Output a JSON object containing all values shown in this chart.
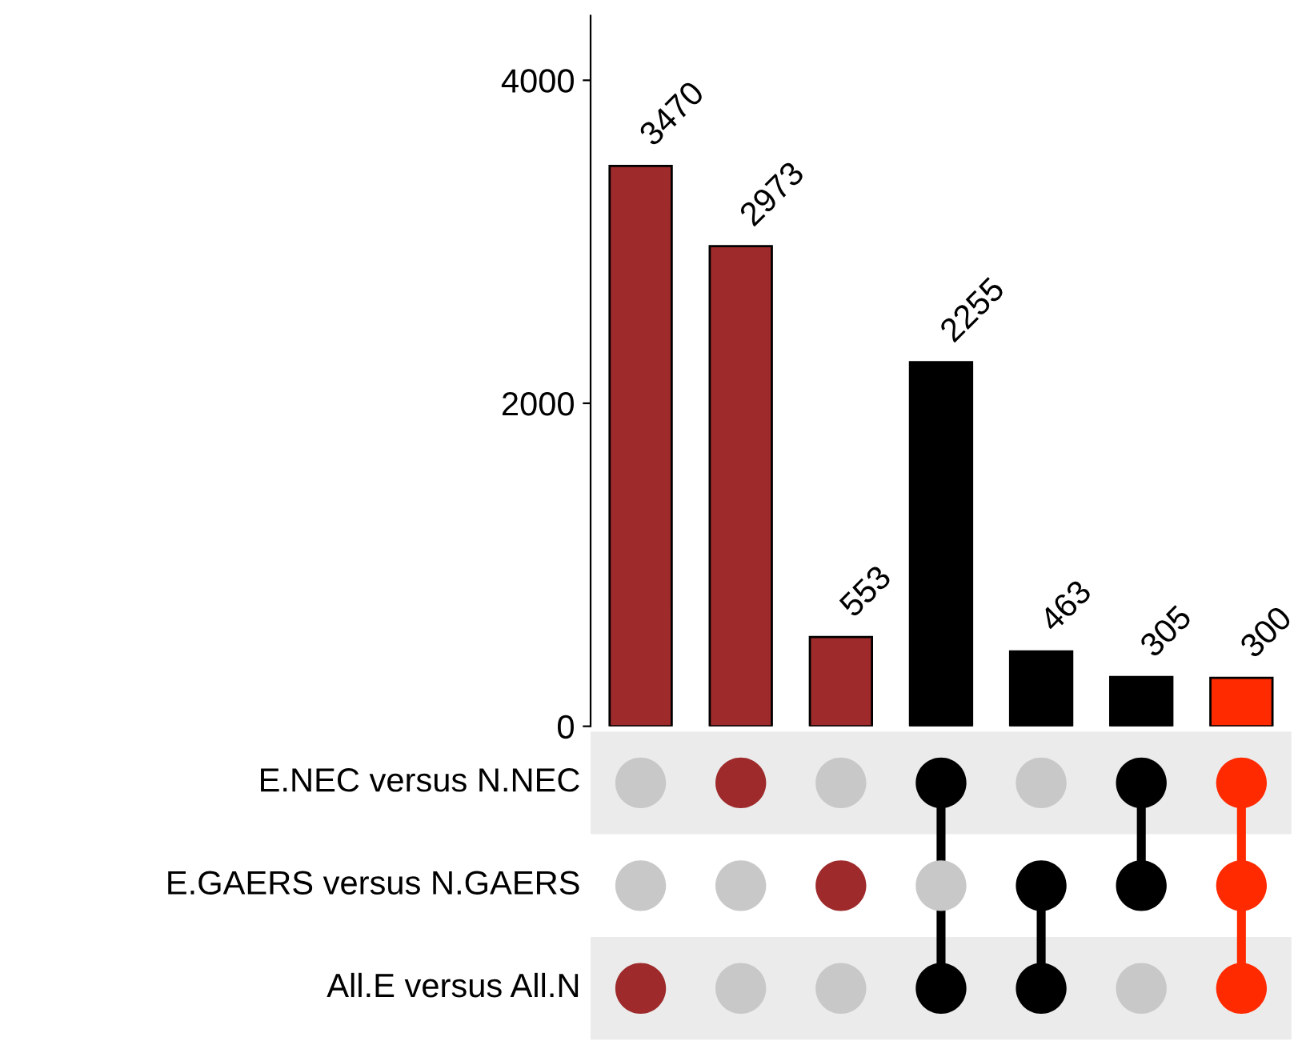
{
  "chart_data": [
    {
      "type": "bar",
      "categories": [
        null,
        null,
        null,
        null,
        null,
        null,
        null
      ],
      "values": [
        3470,
        2973,
        553,
        2255,
        463,
        305,
        300
      ],
      "colors": [
        "#9e2a2b",
        "#9e2a2b",
        "#9e2a2b",
        "#000000",
        "#000000",
        "#000000",
        "#ff2a00"
      ],
      "data_labels": true,
      "ylim": [
        0,
        4400
      ],
      "yticks": [
        0,
        2000,
        4000
      ],
      "tick_labels": "y",
      "grid": false
    },
    {
      "type": "other",
      "annotations": [
        "E.NEC versus N.NEC",
        "E.GAERS versus N.GAERS",
        "All.E versus All.N"
      ]
    }
  ]
}
